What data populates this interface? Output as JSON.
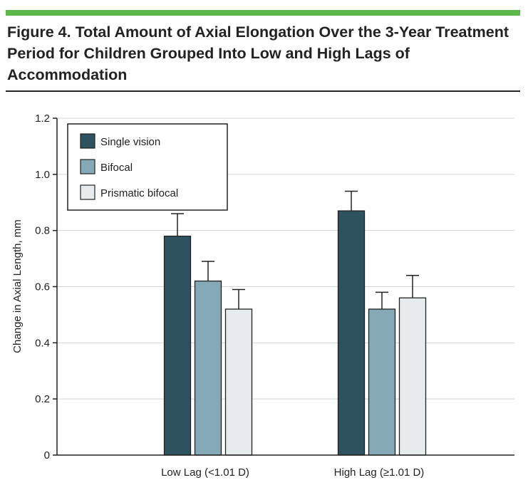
{
  "figure_title": "Figure 4. Total Amount of Axial Elongation Over the 3-Year Treatment Period for Children Grouped Into Low and High Lags of Accommodation",
  "colors": {
    "accent_rule": "#5cb84a",
    "single_vision": "#2e5260",
    "bifocal": "#86a9b8",
    "prismatic_bifocal": "#e6ebee",
    "grid": "#d4d4d4"
  },
  "chart_data": {
    "type": "bar",
    "ylabel": "Change in Axial Length, mm",
    "xlabel": "",
    "ylim": [
      0,
      1.2
    ],
    "yticks": [
      "0",
      "0.2",
      "0.4",
      "0.6",
      "0.8",
      "1.0",
      "1.2"
    ],
    "grid": true,
    "legend_position": "top-left",
    "categories": [
      "Low Lag (<1.01 D)",
      "High Lag (≥1.01 D)"
    ],
    "series": [
      {
        "name": "Single vision",
        "values": [
          0.78,
          0.87
        ],
        "error_upper": [
          0.86,
          0.94
        ]
      },
      {
        "name": "Bifocal",
        "values": [
          0.62,
          0.52
        ],
        "error_upper": [
          0.69,
          0.58
        ]
      },
      {
        "name": "Prismatic bifocal",
        "values": [
          0.52,
          0.56
        ],
        "error_upper": [
          0.59,
          0.64
        ]
      }
    ]
  }
}
